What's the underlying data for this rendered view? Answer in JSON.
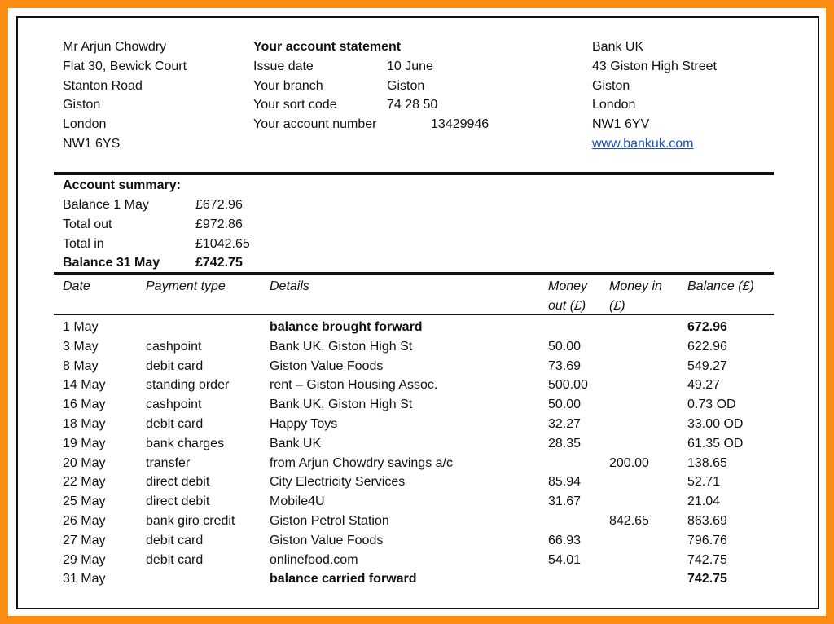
{
  "customer": {
    "lines": [
      "Mr Arjun Chowdry",
      "Flat 30, Bewick Court",
      "Stanton Road",
      "Giston",
      "London",
      "NW1 6YS"
    ]
  },
  "statement": {
    "title": "Your account statement",
    "fields": [
      {
        "label": "Issue date",
        "value": "10 June"
      },
      {
        "label": "Your branch",
        "value": "Giston"
      },
      {
        "label": "Your sort code",
        "value": "74 28 50"
      },
      {
        "label": "Your account number",
        "value": "13429946"
      }
    ]
  },
  "bank": {
    "lines": [
      "Bank UK",
      "43 Giston High Street",
      "Giston",
      "London",
      "NW1 6YV"
    ],
    "website": "www.bankuk.com",
    "link_color": "#1a4fc4"
  },
  "summary": {
    "title": "Account summary:",
    "rows": [
      {
        "label": "Balance 1 May",
        "value": "£672.96",
        "bold": false
      },
      {
        "label": "Total out",
        "value": "£972.86",
        "bold": false
      },
      {
        "label": "Total in",
        "value": "£1042.65",
        "bold": false
      },
      {
        "label": "Balance 31 May",
        "value": "£742.75",
        "bold": true
      }
    ]
  },
  "table": {
    "headers": {
      "date": "Date",
      "type": "Payment type",
      "details": "Details",
      "out_1": "Money",
      "out_2": "out (£)",
      "in_1": "Money in",
      "in_2": "(£)",
      "balance": "Balance (£)"
    },
    "rows": [
      {
        "date": "1 May",
        "type": "",
        "details": "balance brought forward",
        "out": "",
        "in": "",
        "balance": "672.96",
        "bold": true
      },
      {
        "date": "3 May",
        "type": "cashpoint",
        "details": "Bank UK, Giston High St",
        "out": "50.00",
        "in": "",
        "balance": "622.96"
      },
      {
        "date": "8 May",
        "type": "debit card",
        "details": "Giston Value Foods",
        "out": "73.69",
        "in": "",
        "balance": "549.27"
      },
      {
        "date": "14 May",
        "type": "standing order",
        "details": "rent – Giston Housing Assoc.",
        "out": "500.00",
        "in": "",
        "balance": "49.27"
      },
      {
        "date": "16 May",
        "type": "cashpoint",
        "details": "Bank UK, Giston High St",
        "out": "50.00",
        "in": "",
        "balance": "0.73 OD"
      },
      {
        "date": "18 May",
        "type": "debit card",
        "details": "Happy Toys",
        "out": "32.27",
        "in": "",
        "balance": "33.00 OD"
      },
      {
        "date": "19 May",
        "type": "bank charges",
        "details": "Bank UK",
        "out": "28.35",
        "in": "",
        "balance": "61.35 OD"
      },
      {
        "date": "20 May",
        "type": "transfer",
        "details": "from Arjun Chowdry savings a/c",
        "out": "",
        "in": "200.00",
        "balance": "138.65"
      },
      {
        "date": "22 May",
        "type": "direct debit",
        "details": "City Electricity Services",
        "out": "85.94",
        "in": "",
        "balance": "52.71"
      },
      {
        "date": "25 May",
        "type": "direct debit",
        "details": "Mobile4U",
        "out": "31.67",
        "in": "",
        "balance": "21.04"
      },
      {
        "date": "26 May",
        "type": "bank giro credit",
        "details": "Giston Petrol Station",
        "out": "",
        "in": "842.65",
        "balance": "863.69"
      },
      {
        "date": "27 May",
        "type": "debit card",
        "details": "Giston Value Foods",
        "out": "66.93",
        "in": "",
        "balance": "796.76"
      },
      {
        "date": "29 May",
        "type": "debit card",
        "details": "onlinefood.com",
        "out": "54.01",
        "in": "",
        "balance": "742.75"
      },
      {
        "date": "31 May",
        "type": "",
        "details": "balance carried forward",
        "out": "",
        "in": "",
        "balance": "742.75",
        "bold": true
      }
    ]
  }
}
